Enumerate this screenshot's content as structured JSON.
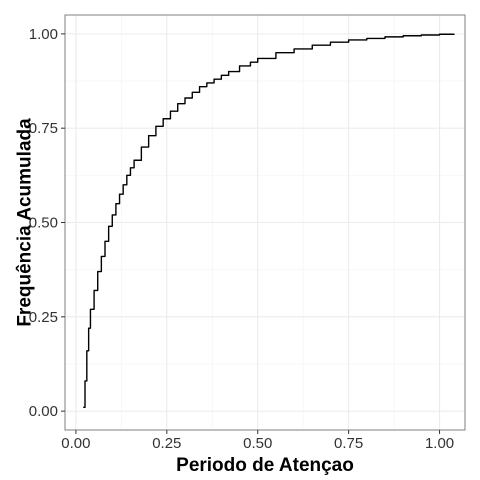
{
  "chart_data": {
    "type": "line",
    "step": true,
    "title": "",
    "xlabel": "Periodo de Atençao",
    "ylabel": "Frequência Acumulada",
    "xlim": [
      -0.03,
      1.07
    ],
    "ylim": [
      -0.05,
      1.05
    ],
    "x_ticks": [
      0.0,
      0.25,
      0.5,
      0.75,
      1.0
    ],
    "x_tick_labels": [
      "0.00",
      "0.25",
      "0.50",
      "0.75",
      "1.00"
    ],
    "y_ticks": [
      0.0,
      0.25,
      0.5,
      0.75,
      1.0
    ],
    "y_tick_labels": [
      "0.00",
      "0.25",
      "0.50",
      "0.75",
      "1.00"
    ],
    "grid": true,
    "legend": "none",
    "colors": {
      "line": "#000000",
      "grid_major": "#ebebeb",
      "grid_minor": "#f5f5f5",
      "border": "#7f7f7f"
    },
    "series": [
      {
        "x": [
          0.02,
          0.025,
          0.03,
          0.035,
          0.04,
          0.05,
          0.06,
          0.07,
          0.08,
          0.09,
          0.1,
          0.11,
          0.12,
          0.13,
          0.14,
          0.15,
          0.16,
          0.18,
          0.2,
          0.22,
          0.24,
          0.26,
          0.28,
          0.3,
          0.32,
          0.34,
          0.36,
          0.38,
          0.4,
          0.42,
          0.45,
          0.48,
          0.5,
          0.55,
          0.6,
          0.65,
          0.7,
          0.75,
          0.8,
          0.85,
          0.9,
          0.95,
          1.0,
          1.04
        ],
        "values": [
          0.01,
          0.08,
          0.16,
          0.22,
          0.27,
          0.32,
          0.37,
          0.41,
          0.45,
          0.49,
          0.52,
          0.55,
          0.575,
          0.6,
          0.625,
          0.645,
          0.665,
          0.7,
          0.73,
          0.755,
          0.775,
          0.795,
          0.815,
          0.83,
          0.845,
          0.86,
          0.87,
          0.88,
          0.89,
          0.9,
          0.915,
          0.925,
          0.935,
          0.95,
          0.96,
          0.97,
          0.978,
          0.984,
          0.988,
          0.992,
          0.995,
          0.997,
          0.999,
          1.0
        ]
      }
    ]
  }
}
